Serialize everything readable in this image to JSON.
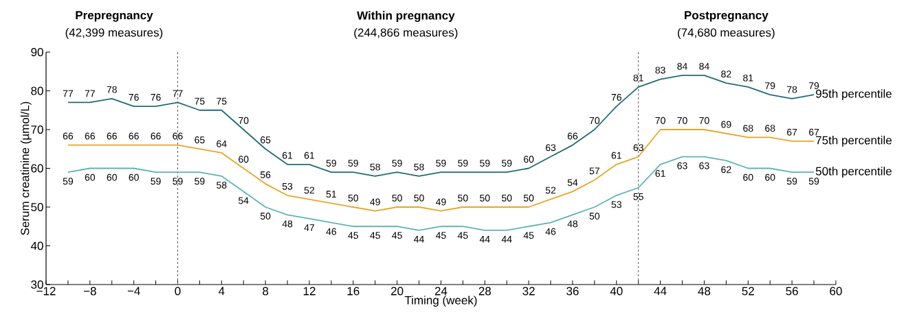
{
  "chart_data": {
    "type": "line",
    "xlabel": "Timing (week)",
    "ylabel": "Serum creatinine (µmol/L)",
    "x": [
      -10,
      -8,
      -6,
      -4,
      -2,
      0,
      2,
      4,
      6,
      8,
      10,
      12,
      14,
      16,
      18,
      20,
      22,
      24,
      26,
      28,
      30,
      32,
      34,
      36,
      38,
      40,
      42,
      44,
      46,
      48,
      50,
      52,
      54,
      56,
      58
    ],
    "series": [
      {
        "name": "95th percentile",
        "color": "#1f6b75",
        "values": [
          77,
          77,
          78,
          76,
          76,
          77,
          75,
          75,
          70,
          65,
          61,
          61,
          59,
          59,
          58,
          59,
          58,
          59,
          59,
          59,
          59,
          60,
          63,
          66,
          70,
          76,
          81,
          83,
          84,
          84,
          82,
          81,
          79,
          78,
          79
        ]
      },
      {
        "name": "75th percentile",
        "color": "#e8a42a",
        "values": [
          66,
          66,
          66,
          66,
          66,
          66,
          65,
          64,
          60,
          56,
          53,
          52,
          51,
          50,
          49,
          50,
          50,
          49,
          50,
          50,
          50,
          50,
          52,
          54,
          57,
          61,
          63,
          70,
          70,
          70,
          69,
          68,
          68,
          67,
          67
        ]
      },
      {
        "name": "50th percentile",
        "color": "#5fb3b3",
        "values": [
          59,
          60,
          60,
          60,
          59,
          59,
          59,
          58,
          54,
          50,
          48,
          47,
          46,
          45,
          45,
          45,
          44,
          45,
          45,
          44,
          44,
          45,
          46,
          48,
          50,
          53,
          55,
          61,
          63,
          63,
          62,
          60,
          60,
          59,
          59
        ]
      }
    ],
    "xlim": [
      -12,
      60
    ],
    "xticks": [
      {
        "value": -12,
        "label": "−12"
      },
      {
        "value": -10,
        "label": null
      },
      {
        "value": -8,
        "label": "−8"
      },
      {
        "value": -6,
        "label": null
      },
      {
        "value": -4,
        "label": "−4"
      },
      {
        "value": -2,
        "label": null
      },
      0,
      {
        "value": 2,
        "label": null
      },
      4,
      {
        "value": 6,
        "label": null
      },
      8,
      {
        "value": 10,
        "label": null
      },
      12,
      {
        "value": 14,
        "label": null
      },
      16,
      {
        "value": 18,
        "label": null
      },
      20,
      {
        "value": 22,
        "label": null
      },
      24,
      {
        "value": 26,
        "label": null
      },
      28,
      {
        "value": 30,
        "label": null
      },
      32,
      {
        "value": 34,
        "label": null
      },
      36,
      {
        "value": 38,
        "label": null
      },
      40,
      {
        "value": 42,
        "label": null
      },
      44,
      {
        "value": 46,
        "label": null
      },
      48,
      {
        "value": 50,
        "label": null
      },
      52,
      {
        "value": 54,
        "label": null
      },
      56,
      {
        "value": 58,
        "label": null
      },
      60
    ],
    "ylim": [
      30,
      90
    ],
    "yticks": [
      30,
      40,
      50,
      60,
      70,
      80,
      90
    ],
    "ref_lines": [
      {
        "axis": "x",
        "value": 0,
        "line_style": "dashed",
        "color": "#555555"
      },
      {
        "axis": "x",
        "value": 42,
        "line_style": "dashed",
        "color": "#555555"
      }
    ],
    "annotations": [
      "Prepregnancy",
      "(42,399 measures)",
      "Within pregnancy",
      "(244,866 measures)",
      "Postpregnancy",
      "(74,680 measures)"
    ],
    "data_labels": true,
    "legend": false,
    "grid": false,
    "marker": "none",
    "line_style": "solid"
  }
}
